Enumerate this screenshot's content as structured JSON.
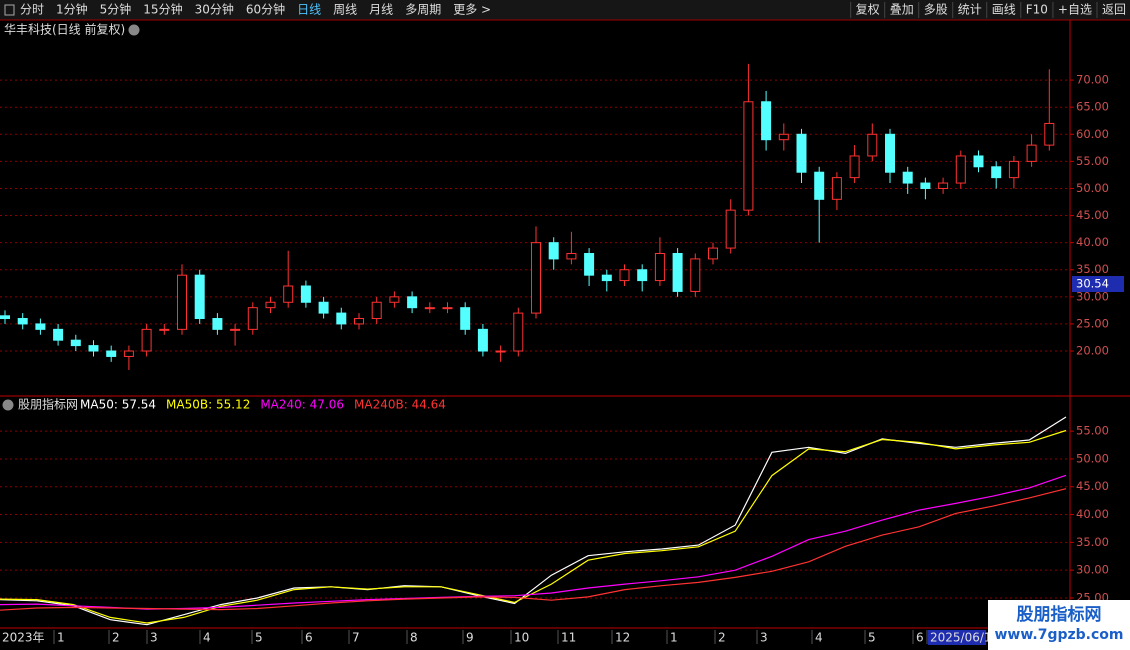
{
  "toolbar": {
    "left": [
      "分时",
      "1分钟",
      "5分钟",
      "15分钟",
      "30分钟",
      "60分钟",
      "日线",
      "周线",
      "月线",
      "多周期",
      "更多 >"
    ],
    "right": [
      "复权",
      "叠加",
      "多股",
      "统计",
      "画线",
      "F10",
      "+自选",
      "返回"
    ]
  },
  "cursor_price": "30.54",
  "watermark": {
    "title": "股朋指标网",
    "url": "www.7gpzb.com"
  },
  "chart_data": [
    {
      "type": "candlestick",
      "title": "华丰科技(日线 前复权)",
      "up_color": "#ff3232",
      "down_color": "#54ffff",
      "open": [
        26.5,
        26,
        25,
        24,
        22,
        21,
        20,
        19,
        20,
        24,
        24,
        34,
        26,
        24,
        24,
        28,
        29,
        32,
        29,
        27,
        25,
        26,
        29,
        30,
        28,
        28,
        28,
        24,
        20,
        20,
        27,
        40,
        37,
        38,
        34,
        33,
        35,
        33,
        38,
        31,
        37,
        39,
        46,
        66,
        59,
        60,
        53,
        48,
        52,
        56,
        60,
        53,
        51,
        50,
        51,
        56,
        54,
        52,
        55,
        58
      ],
      "high": [
        27.5,
        27,
        26,
        25,
        23,
        22,
        21,
        21,
        25,
        25,
        36,
        35,
        27,
        25,
        29,
        30,
        38.5,
        33,
        30,
        28,
        27,
        30,
        31,
        31,
        29,
        29,
        29,
        25,
        21,
        28,
        43,
        41,
        42,
        39,
        35,
        36,
        36,
        41,
        39,
        38,
        40,
        48,
        73,
        68,
        62,
        61,
        54,
        53,
        58,
        62,
        61,
        54,
        52,
        52,
        57,
        57,
        55,
        56,
        60,
        72
      ],
      "low": [
        25,
        24,
        23,
        21,
        20,
        19,
        18,
        16.5,
        19,
        23,
        23,
        25,
        23,
        21,
        23,
        27,
        28,
        28,
        26,
        24,
        24,
        25,
        28,
        27,
        27,
        27,
        23,
        19,
        18,
        19,
        26,
        35,
        36,
        32,
        31,
        32,
        31,
        32,
        30,
        30,
        36,
        38,
        45,
        57,
        57,
        51,
        40,
        46,
        51,
        55,
        51,
        49,
        48,
        49,
        50,
        53,
        50,
        50,
        54,
        57
      ],
      "close": [
        26,
        25,
        24,
        22,
        21,
        20,
        19,
        20,
        24,
        24,
        34,
        26,
        24,
        24,
        28,
        29,
        32,
        29,
        27,
        25,
        26,
        29,
        30,
        28,
        28,
        28,
        24,
        20,
        20,
        27,
        40,
        37,
        38,
        34,
        33,
        35,
        33,
        38,
        31,
        37,
        39,
        46,
        66,
        59,
        60,
        53,
        48,
        52,
        56,
        60,
        53,
        51,
        50,
        51,
        56,
        54,
        52,
        55,
        58,
        62
      ],
      "ylim": [
        11.7,
        77.4
      ],
      "yticks": [
        {
          "value": 20,
          "label": "20.00"
        },
        {
          "value": 25,
          "label": "25.00"
        },
        {
          "value": 30,
          "label": "30.00"
        },
        {
          "value": 35,
          "label": "35.00"
        },
        {
          "value": 40,
          "label": "40.00"
        },
        {
          "value": 45,
          "label": "45.00"
        },
        {
          "value": 50,
          "label": "50.00"
        },
        {
          "value": 55,
          "label": "55.00"
        },
        {
          "value": 60,
          "label": "60.00"
        },
        {
          "value": 65,
          "label": "65.00"
        },
        {
          "value": 70,
          "label": "70.00"
        }
      ],
      "grid": true
    },
    {
      "type": "line",
      "title": "股朋指标网",
      "series": [
        {
          "name": "MA50: 57.54",
          "color": "#ffffff",
          "values": [
            24.7,
            24.5,
            23.6,
            21.1,
            20.2,
            22,
            23.8,
            25,
            26.8,
            27,
            26.5,
            27.2,
            27,
            25.4,
            24,
            29.1,
            32.6,
            33.3,
            33.8,
            34.5,
            38.1,
            51.2,
            52.1,
            51,
            53.6,
            52.8,
            52.1,
            52.8,
            53.4,
            57.54
          ]
        },
        {
          "name": "MA50B: 55.12",
          "color": "#ffff00",
          "values": [
            24.8,
            24.7,
            23.8,
            21.5,
            20.5,
            21.5,
            23.5,
            24.6,
            26.5,
            27,
            26.6,
            27,
            27,
            25.6,
            24.2,
            27.5,
            31.8,
            33,
            33.5,
            34.2,
            37,
            47,
            51.8,
            51.3,
            53.5,
            53,
            51.8,
            52.5,
            53,
            55.12
          ]
        },
        {
          "name": "MA240: 47.06",
          "color": "#ff00ff",
          "values": [
            23.8,
            23.9,
            23.6,
            23.3,
            23.0,
            23.1,
            23.3,
            23.7,
            24.1,
            24.4,
            24.7,
            24.9,
            25.1,
            25.3,
            25.4,
            25.9,
            26.8,
            27.5,
            28.1,
            28.8,
            30.0,
            32.5,
            35.5,
            37.0,
            39.0,
            40.8,
            42.0,
            43.3,
            44.8,
            47.06
          ]
        },
        {
          "name": "MA240B: 44.64",
          "color": "#ff3232",
          "values": [
            22.8,
            23.2,
            23.3,
            23.2,
            23.1,
            23.0,
            22.9,
            23.1,
            23.6,
            24.1,
            24.5,
            24.8,
            25.0,
            25.2,
            25.1,
            24.6,
            25.2,
            26.5,
            27.2,
            27.8,
            28.7,
            29.8,
            31.5,
            34.3,
            36.3,
            37.8,
            40.2,
            41.5,
            43.0,
            44.64
          ]
        }
      ],
      "ylim": [
        19.6,
        58.8
      ],
      "yticks": [
        {
          "value": 25,
          "label": "25.00"
        },
        {
          "value": 30,
          "label": "30.00"
        },
        {
          "value": 35,
          "label": "35.00"
        },
        {
          "value": 40,
          "label": "40.00"
        },
        {
          "value": 45,
          "label": "45.00"
        },
        {
          "value": 50,
          "label": "50.00"
        },
        {
          "value": 55,
          "label": "55.00"
        }
      ],
      "grid": true,
      "xtick_labels": [
        "2023年",
        "1",
        "2",
        "3",
        "4",
        "5",
        "6",
        "7",
        "8",
        "9",
        "10",
        "11",
        "12",
        "1",
        "2",
        "3",
        "4",
        "5",
        "6",
        "2025/06/1"
      ]
    }
  ]
}
